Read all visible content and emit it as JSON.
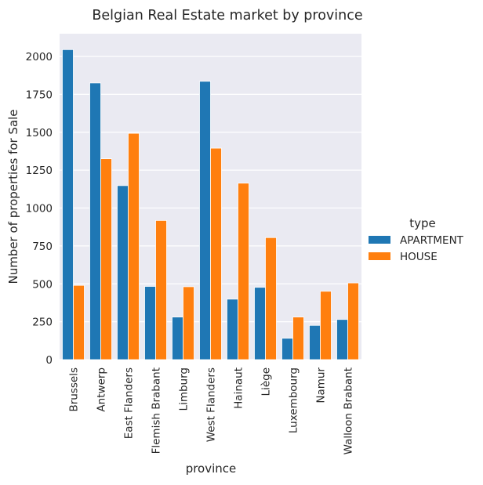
{
  "chart_data": {
    "type": "bar",
    "title": "Belgian Real Estate market by province",
    "xlabel": "province",
    "ylabel": "Number of properties for Sale",
    "ylim": [
      0,
      2150
    ],
    "yticks": [
      0,
      250,
      500,
      750,
      1000,
      1250,
      1500,
      1750,
      2000
    ],
    "grid": true,
    "legend_position": "right",
    "legend_title": "type",
    "categories": [
      "Brussels",
      "Antwerp",
      "East Flanders",
      "Flemish Brabant",
      "Limburg",
      "West Flanders",
      "Hainaut",
      "Liège",
      "Luxembourg",
      "Namur",
      "Walloon Brabant"
    ],
    "series": [
      {
        "name": "APARTMENT",
        "color": "#1f77b4",
        "values": [
          2045,
          1825,
          1148,
          483,
          281,
          1836,
          399,
          477,
          141,
          226,
          265
        ]
      },
      {
        "name": "HOUSE",
        "color": "#ff7f0e",
        "values": [
          490,
          1325,
          1493,
          918,
          481,
          1395,
          1164,
          805,
          281,
          451,
          506
        ]
      }
    ]
  }
}
